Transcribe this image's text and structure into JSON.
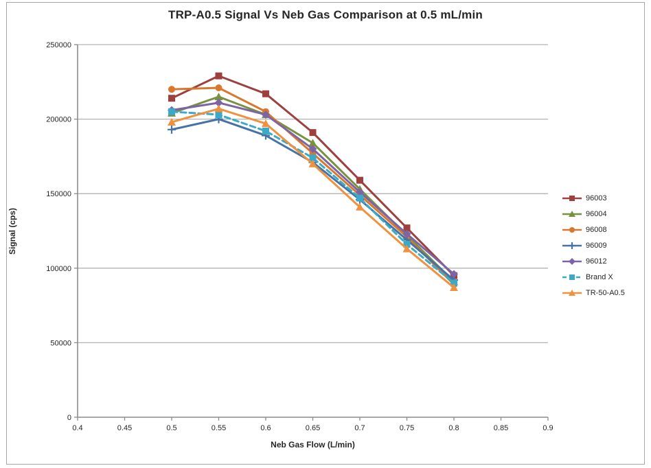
{
  "window": {
    "background": "#ffffff",
    "border_color": "#a8a8a8"
  },
  "chart_data": {
    "type": "line",
    "title": "TRP-A0.5 Signal Vs Neb Gas Comparison at 0.5 mL/min",
    "xlabel": "Neb Gas Flow (L/min)",
    "ylabel": "Signal (cps)",
    "xlim": [
      0.4,
      0.9
    ],
    "ylim": [
      0,
      250000
    ],
    "x_tick_values": [
      0.4,
      0.45,
      0.5,
      0.55,
      0.6,
      0.65,
      0.7,
      0.75,
      0.8,
      0.85,
      0.9
    ],
    "x_tick_labels": [
      "0.4",
      "0.45",
      "0.5",
      "0.55",
      "0.6",
      "0.65",
      "0.7",
      "0.75",
      "0.8",
      "0.85",
      "0.9"
    ],
    "y_tick_values": [
      0,
      50000,
      100000,
      150000,
      200000,
      250000
    ],
    "y_tick_labels": [
      "0",
      "50000",
      "100000",
      "150000",
      "200000",
      "250000"
    ],
    "grid": "horizontal",
    "legend_position": "right",
    "x": [
      0.5,
      0.55,
      0.6,
      0.65,
      0.7,
      0.75,
      0.8
    ],
    "series": [
      {
        "name": "96003",
        "color": "#9e413e",
        "marker": "square",
        "line": "solid",
        "values": [
          214000,
          229000,
          217000,
          191000,
          159000,
          127000,
          95000
        ]
      },
      {
        "name": "96004",
        "color": "#77913f",
        "marker": "triangle",
        "line": "solid",
        "values": [
          204000,
          215000,
          203000,
          184000,
          153000,
          122000,
          91000
        ]
      },
      {
        "name": "96008",
        "color": "#d9782d",
        "marker": "circle",
        "line": "solid",
        "values": [
          220000,
          221000,
          205000,
          177000,
          149000,
          121000,
          89000
        ]
      },
      {
        "name": "96009",
        "color": "#4573a7",
        "marker": "plus",
        "line": "solid",
        "values": [
          193000,
          200000,
          189000,
          171000,
          146000,
          119000,
          92000
        ]
      },
      {
        "name": "96012",
        "color": "#7d64a5",
        "marker": "diamond",
        "line": "solid",
        "values": [
          206000,
          211000,
          203000,
          180000,
          151000,
          123000,
          96000
        ]
      },
      {
        "name": "Brand X",
        "color": "#3baac8",
        "marker": "square",
        "line": "dashed",
        "values": [
          205000,
          203000,
          192000,
          174000,
          147000,
          116000,
          90000
        ]
      },
      {
        "name": "TR-50-A0.5",
        "color": "#f0913d",
        "marker": "triangle",
        "line": "solid",
        "values": [
          198000,
          207000,
          197000,
          170000,
          141000,
          113000,
          87000
        ]
      }
    ],
    "axis_color": "#8c8c8c",
    "grid_color": "#b3b3b3",
    "tick_label_color": "#262626"
  }
}
